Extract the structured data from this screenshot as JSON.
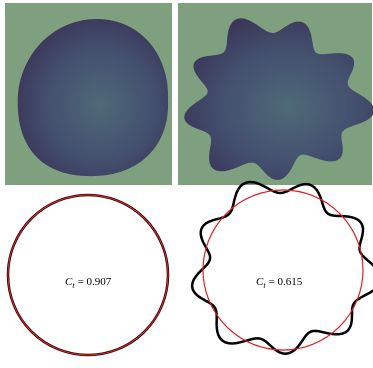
{
  "panels": [
    {
      "symbol": "C",
      "subscript": "t",
      "value_text": "= 0.907"
    },
    {
      "symbol": "C",
      "subscript": "t",
      "value_text": "= 0.615"
    }
  ]
}
